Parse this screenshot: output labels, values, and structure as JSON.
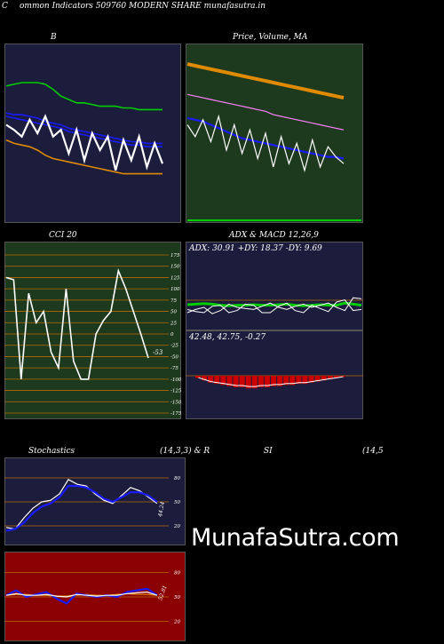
{
  "header": {
    "left_letter": "C",
    "title": "ommon  Indicators 509760  MODERN  SHARE munafasutra.in"
  },
  "watermark": "MunafaSutra.com",
  "colors": {
    "panel_navy": "#1c1c3c",
    "panel_green": "#1e3a1e",
    "panel_red": "#8b0000",
    "white": "#ffffff",
    "blue": "#1a1aff",
    "green": "#00cc00",
    "orange": "#e08a00",
    "pink": "#ff80ff",
    "grid_orange": "#b86a00",
    "macd_red": "#cc0000"
  },
  "chart_data": [
    {
      "id": "bollinger",
      "type": "line",
      "title": "B",
      "ylim": [
        0,
        100
      ],
      "series": [
        {
          "color": "green",
          "values": [
            78,
            79,
            80,
            80,
            80,
            79,
            76,
            72,
            70,
            68,
            68,
            67,
            66,
            66,
            66,
            65,
            65,
            64,
            64,
            64,
            64
          ]
        },
        {
          "color": "blue",
          "values": [
            62,
            61,
            61,
            60,
            59,
            57,
            56,
            55,
            53,
            52,
            51,
            50,
            49,
            48,
            47,
            46,
            45,
            45,
            44,
            44,
            44
          ]
        },
        {
          "color": "blue",
          "values": [
            60,
            59,
            58,
            57,
            56,
            55,
            54,
            53,
            51,
            50,
            49,
            48,
            47,
            46,
            45,
            44,
            43,
            43,
            42,
            42,
            42
          ]
        },
        {
          "color": "orange",
          "values": [
            46,
            44,
            43,
            42,
            40,
            37,
            35,
            34,
            33,
            32,
            31,
            30,
            29,
            28,
            27,
            26,
            26,
            26,
            26,
            26,
            26
          ]
        },
        {
          "color": "white",
          "values": [
            55,
            52,
            48,
            58,
            50,
            60,
            48,
            52,
            38,
            52,
            34,
            50,
            40,
            48,
            28,
            46,
            34,
            48,
            30,
            44,
            32
          ]
        }
      ]
    },
    {
      "id": "price-ma",
      "type": "line",
      "title": "Price,  Volume,  MA",
      "ylim": [
        0,
        100
      ],
      "series": [
        {
          "color": "orange",
          "values": [
            91,
            90,
            89,
            88,
            87,
            86,
            85,
            84,
            83,
            82,
            81,
            80,
            79,
            78,
            77,
            76,
            75,
            74,
            73,
            72,
            71
          ]
        },
        {
          "color": "pink",
          "values": [
            73,
            72,
            71,
            70,
            69,
            68,
            67,
            66,
            65,
            64,
            63,
            61,
            60,
            59,
            58,
            57,
            56,
            55,
            54,
            53,
            52
          ]
        },
        {
          "color": "blue",
          "values": [
            59,
            58,
            57,
            55,
            53,
            51,
            49,
            47,
            46,
            45,
            44,
            43,
            42,
            41,
            40,
            39,
            38,
            37,
            36,
            36,
            35
          ]
        },
        {
          "color": "white",
          "values": [
            55,
            48,
            58,
            45,
            60,
            40,
            55,
            38,
            52,
            35,
            50,
            30,
            48,
            32,
            44,
            28,
            46,
            30,
            42,
            36,
            32
          ]
        }
      ]
    },
    {
      "id": "cci",
      "type": "line",
      "title": "CCI 20",
      "ylim": [
        -175,
        175
      ],
      "ticks": [
        175,
        150,
        125,
        100,
        75,
        50,
        25,
        0,
        -25,
        -50,
        -75,
        -100,
        -125,
        -150,
        -175
      ],
      "last_label": "-53",
      "series": [
        {
          "color": "white",
          "values": [
            125,
            120,
            -100,
            90,
            25,
            50,
            -40,
            -75,
            100,
            -60,
            -100,
            -100,
            0,
            30,
            50,
            140,
            100,
            50,
            0,
            -53
          ]
        }
      ]
    },
    {
      "id": "adx",
      "type": "line",
      "title": "ADX  & MACD 12,26,9",
      "label": "ADX: 30.91  +DY: 18.37  -DY: 9.69",
      "series": [
        {
          "color": "green",
          "values": [
            45,
            46,
            47,
            46,
            44,
            43,
            44,
            44,
            45,
            44,
            44,
            45,
            46,
            44,
            43,
            44,
            45,
            44,
            44,
            48,
            46,
            44
          ]
        },
        {
          "color": "white",
          "values": [
            30,
            36,
            40,
            28,
            34,
            46,
            40,
            38,
            36,
            42,
            48,
            40,
            36,
            42,
            46,
            40,
            44,
            48,
            40,
            34,
            58,
            56
          ]
        },
        {
          "color": "white",
          "values": [
            36,
            32,
            30,
            42,
            44,
            30,
            34,
            46,
            44,
            30,
            30,
            42,
            48,
            34,
            30,
            44,
            38,
            32,
            50,
            54,
            34,
            36
          ]
        }
      ]
    },
    {
      "id": "macd",
      "type": "bar",
      "title": "MACD",
      "label": "42.48,  42.75,  -0.27",
      "values": [
        -2,
        -4,
        -6,
        -7,
        -8,
        -9,
        -10,
        -10,
        -11,
        -11,
        -10,
        -10,
        -9,
        -9,
        -8,
        -8,
        -7,
        -7,
        -6,
        -5,
        -4,
        -3,
        -2,
        -1
      ]
    },
    {
      "id": "stochastics",
      "type": "line",
      "title_left": "Stochastics",
      "title_mid": "(14,3,3) & R",
      "title_si": "SI",
      "title_right": "(14,5",
      "ylim": [
        0,
        100
      ],
      "ticks": [
        80,
        50,
        20
      ],
      "last_label": "44.24",
      "series": [
        {
          "color": "white",
          "values": [
            18,
            16,
            30,
            42,
            50,
            52,
            60,
            78,
            72,
            70,
            60,
            52,
            48,
            58,
            68,
            64,
            56,
            48
          ]
        },
        {
          "color": "blue",
          "values": [
            14,
            16,
            24,
            36,
            44,
            48,
            56,
            70,
            70,
            68,
            62,
            54,
            50,
            56,
            62,
            62,
            58,
            50
          ]
        }
      ]
    },
    {
      "id": "rsi",
      "type": "line",
      "ylim": [
        0,
        100
      ],
      "ticks": [
        80,
        50,
        20
      ],
      "last_label": "52.81",
      "series": [
        {
          "color": "orange",
          "values": [
            52,
            53,
            53,
            52,
            52,
            51,
            51,
            52,
            53,
            52,
            52,
            53,
            54,
            53,
            53,
            52
          ]
        },
        {
          "color": "blue",
          "values": [
            52,
            58,
            50,
            53,
            56,
            48,
            42,
            54,
            52,
            50,
            52,
            50,
            56,
            58,
            60,
            52
          ]
        },
        {
          "color": "white",
          "values": [
            52,
            54,
            52,
            52,
            53,
            51,
            50,
            53,
            52,
            51,
            52,
            52,
            54,
            55,
            56,
            52
          ]
        }
      ]
    }
  ]
}
